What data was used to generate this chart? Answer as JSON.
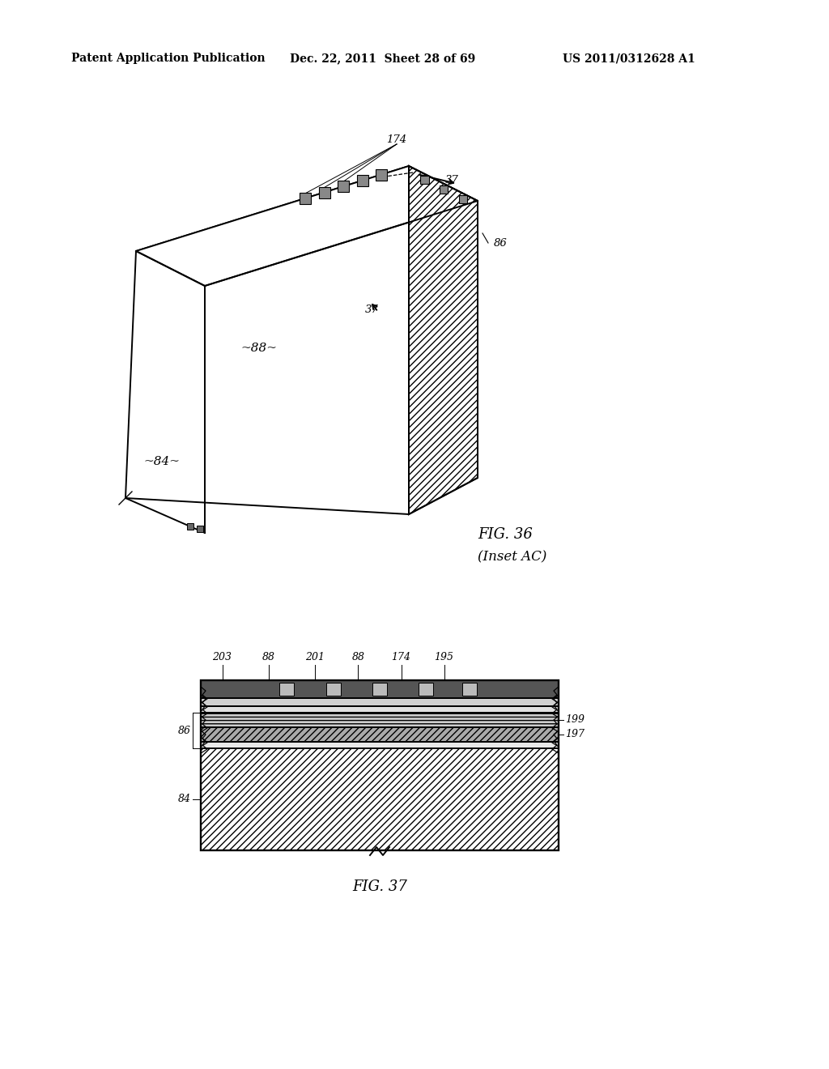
{
  "header_left": "Patent Application Publication",
  "header_mid": "Dec. 22, 2011  Sheet 28 of 69",
  "header_right": "US 2011/0312628 A1",
  "fig36_title": "FIG. 36",
  "fig36_subtitle": "(Inset AC)",
  "fig37_title": "FIG. 37",
  "bg_color": "#ffffff",
  "line_color": "#000000"
}
